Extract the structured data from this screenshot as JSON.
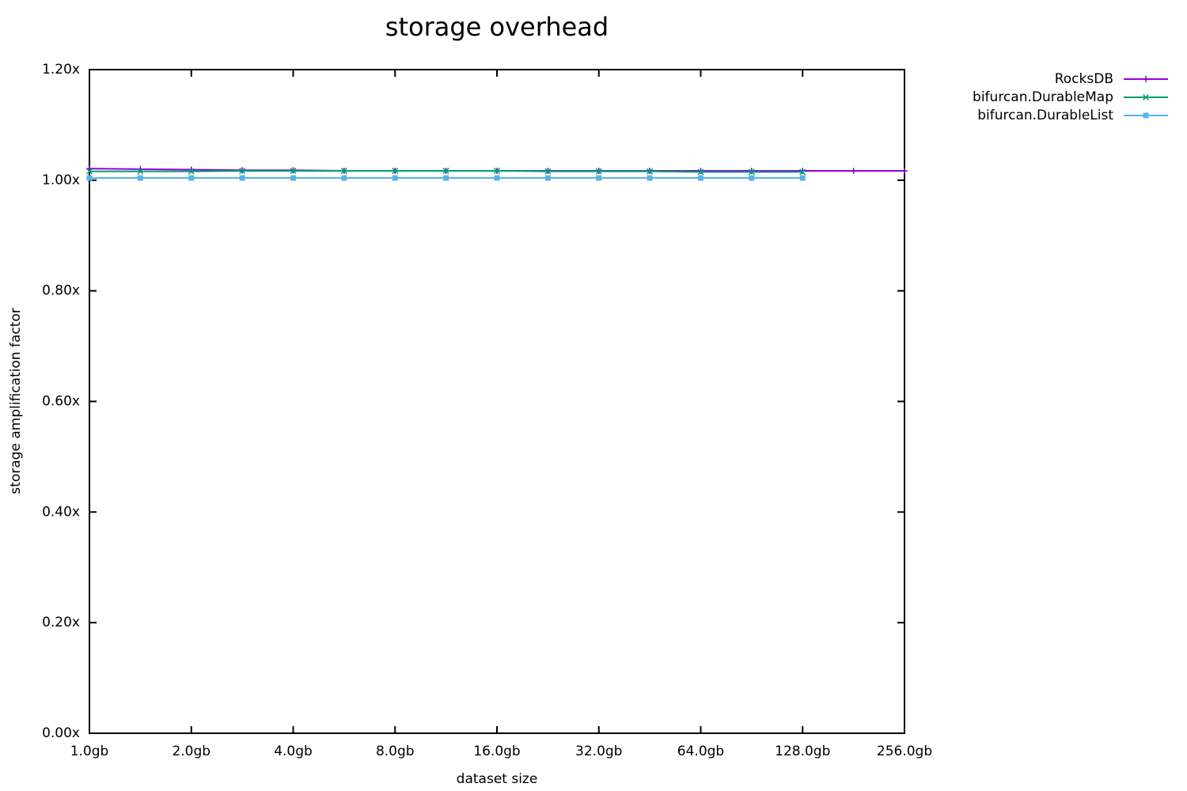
{
  "chart_data": {
    "type": "line",
    "title": "storage overhead",
    "x_label": "dataset size",
    "y_label": "storage amplification factor",
    "x": [
      1,
      1.414,
      2,
      2.828,
      4,
      5.657,
      8,
      11.31,
      16,
      22.63,
      32,
      45.25,
      64,
      90.51,
      128,
      181.0,
      256
    ],
    "series": [
      {
        "name": "RocksDB",
        "color": "#9400d3",
        "marker": "plus",
        "values": [
          1.021,
          1.02,
          1.019,
          1.018,
          1.018,
          1.017,
          1.017,
          1.017,
          1.017,
          1.017,
          1.017,
          1.017,
          1.017,
          1.017,
          1.017,
          1.017,
          1.017
        ]
      },
      {
        "name": "bifurcan.DurableMap",
        "color": "#009e73",
        "marker": "cross",
        "values": [
          1.016,
          1.016,
          1.016,
          1.017,
          1.017,
          1.017,
          1.017,
          1.017,
          1.017,
          1.016,
          1.016,
          1.016,
          1.015,
          1.015,
          1.015,
          null,
          null
        ]
      },
      {
        "name": "bifurcan.DurableList",
        "color": "#56b4e9",
        "marker": "square",
        "values": [
          1.004,
          1.004,
          1.004,
          1.004,
          1.004,
          1.004,
          1.004,
          1.004,
          1.004,
          1.004,
          1.004,
          1.004,
          1.004,
          1.004,
          1.004,
          null,
          null
        ]
      }
    ],
    "xscale": "log2",
    "xlim": [
      1,
      256
    ],
    "xticks": [
      {
        "value": 1,
        "label": "1.0gb"
      },
      {
        "value": 2,
        "label": "2.0gb"
      },
      {
        "value": 4,
        "label": "4.0gb"
      },
      {
        "value": 8,
        "label": "8.0gb"
      },
      {
        "value": 16,
        "label": "16.0gb"
      },
      {
        "value": 32,
        "label": "32.0gb"
      },
      {
        "value": 64,
        "label": "64.0gb"
      },
      {
        "value": 128,
        "label": "128.0gb"
      },
      {
        "value": 256,
        "label": "256.0gb"
      }
    ],
    "ylim": [
      0,
      1.2
    ],
    "yticks": [
      {
        "value": 0,
        "label": "0.00x"
      },
      {
        "value": 0.2,
        "label": "0.20x"
      },
      {
        "value": 0.4,
        "label": "0.40x"
      },
      {
        "value": 0.6,
        "label": "0.60x"
      },
      {
        "value": 0.8,
        "label": "0.80x"
      },
      {
        "value": 1.0,
        "label": "1.00x"
      },
      {
        "value": 1.2,
        "label": "1.20x"
      }
    ],
    "legend": "top-right-outside"
  }
}
